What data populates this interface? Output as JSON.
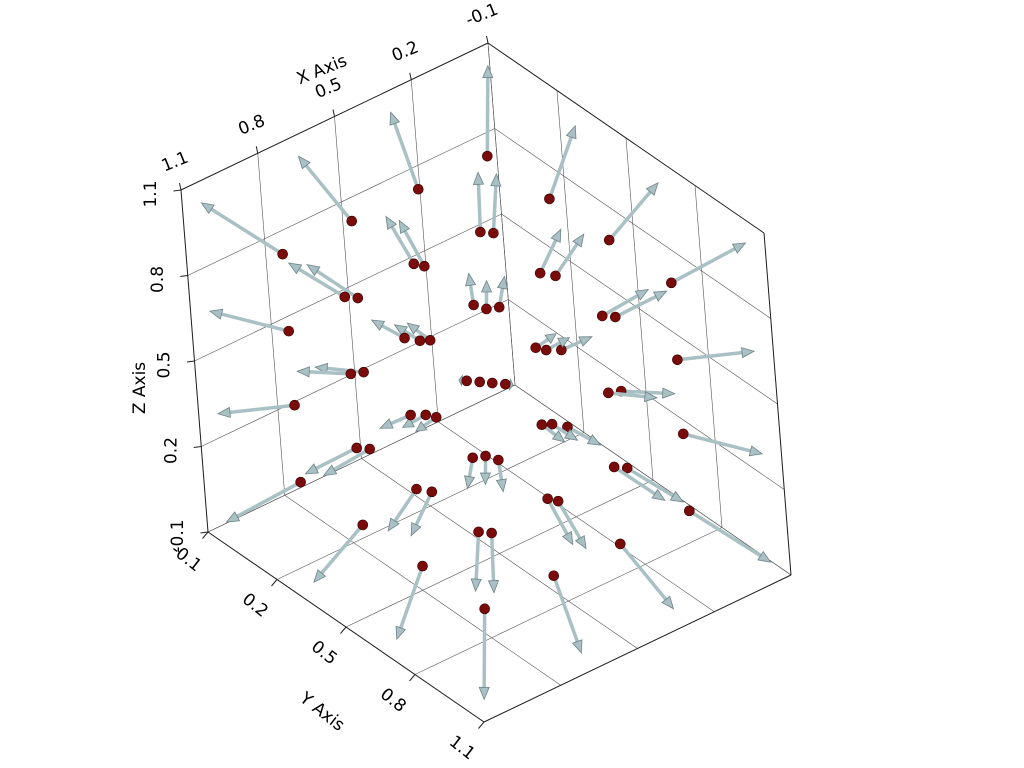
{
  "chart_data": {
    "type": "quiver3d",
    "xlabel": "X Axis",
    "ylabel": "Y Axis",
    "zlabel": "Z Axis",
    "xlim": [
      -0.1,
      1.1
    ],
    "ylim": [
      -0.1,
      1.1
    ],
    "zlim": [
      -0.1,
      1.1
    ],
    "xticks": [
      -0.1,
      0.2,
      0.5,
      0.8,
      1.1
    ],
    "yticks": [
      -0.1,
      0.2,
      0.5,
      0.8,
      1.1
    ],
    "zticks": [
      -0.1,
      0.2,
      0.5,
      0.8,
      1.1
    ],
    "grid": true,
    "point_color": "#7a0b0b",
    "arrow_color": "#a9c0c4",
    "x": [
      0.1,
      0.1,
      0.1,
      0.1,
      0.1,
      0.1,
      0.1,
      0.1,
      0.1,
      0.1,
      0.1,
      0.1,
      0.1,
      0.1,
      0.1,
      0.1,
      0.37,
      0.37,
      0.37,
      0.37,
      0.37,
      0.37,
      0.37,
      0.37,
      0.37,
      0.37,
      0.37,
      0.37,
      0.37,
      0.37,
      0.37,
      0.37,
      0.63,
      0.63,
      0.63,
      0.63,
      0.63,
      0.63,
      0.63,
      0.63,
      0.63,
      0.63,
      0.63,
      0.63,
      0.63,
      0.63,
      0.63,
      0.63,
      0.9,
      0.9,
      0.9,
      0.9,
      0.9,
      0.9,
      0.9,
      0.9,
      0.9,
      0.9,
      0.9,
      0.9,
      0.9,
      0.9,
      0.9,
      0.9
    ],
    "y": [
      0.1,
      0.1,
      0.1,
      0.1,
      0.37,
      0.37,
      0.37,
      0.37,
      0.63,
      0.63,
      0.63,
      0.63,
      0.9,
      0.9,
      0.9,
      0.9,
      0.1,
      0.1,
      0.1,
      0.1,
      0.37,
      0.37,
      0.37,
      0.37,
      0.63,
      0.63,
      0.63,
      0.63,
      0.9,
      0.9,
      0.9,
      0.9,
      0.1,
      0.1,
      0.1,
      0.1,
      0.37,
      0.37,
      0.37,
      0.37,
      0.63,
      0.63,
      0.63,
      0.63,
      0.9,
      0.9,
      0.9,
      0.9,
      0.1,
      0.1,
      0.1,
      0.1,
      0.37,
      0.37,
      0.37,
      0.37,
      0.63,
      0.63,
      0.63,
      0.63,
      0.9,
      0.9,
      0.9,
      0.9
    ],
    "z": [
      0.1,
      0.37,
      0.63,
      0.9,
      0.1,
      0.37,
      0.63,
      0.9,
      0.1,
      0.37,
      0.63,
      0.9,
      0.1,
      0.37,
      0.63,
      0.9,
      0.1,
      0.37,
      0.63,
      0.9,
      0.1,
      0.37,
      0.63,
      0.9,
      0.1,
      0.37,
      0.63,
      0.9,
      0.1,
      0.37,
      0.63,
      0.9,
      0.1,
      0.37,
      0.63,
      0.9,
      0.1,
      0.37,
      0.63,
      0.9,
      0.1,
      0.37,
      0.63,
      0.9,
      0.1,
      0.37,
      0.63,
      0.9,
      0.1,
      0.37,
      0.63,
      0.9,
      0.1,
      0.37,
      0.63,
      0.9,
      0.1,
      0.37,
      0.63,
      0.9,
      0.1,
      0.37,
      0.63,
      0.9
    ],
    "u": [
      -0.16,
      -0.16,
      -0.16,
      -0.16,
      -0.16,
      -0.16,
      -0.16,
      -0.16,
      -0.16,
      -0.16,
      -0.16,
      -0.16,
      -0.16,
      -0.16,
      -0.16,
      -0.16,
      -0.05,
      -0.05,
      -0.05,
      -0.05,
      -0.05,
      -0.05,
      -0.05,
      -0.05,
      -0.05,
      -0.05,
      -0.05,
      -0.05,
      -0.05,
      -0.05,
      -0.05,
      -0.05,
      0.05,
      0.05,
      0.05,
      0.05,
      0.05,
      0.05,
      0.05,
      0.05,
      0.05,
      0.05,
      0.05,
      0.05,
      0.05,
      0.05,
      0.05,
      0.05,
      0.16,
      0.16,
      0.16,
      0.16,
      0.16,
      0.16,
      0.16,
      0.16,
      0.16,
      0.16,
      0.16,
      0.16,
      0.16,
      0.16,
      0.16,
      0.16
    ],
    "v": [
      -0.16,
      -0.16,
      -0.16,
      -0.16,
      -0.05,
      -0.05,
      -0.05,
      -0.05,
      0.05,
      0.05,
      0.05,
      0.05,
      0.16,
      0.16,
      0.16,
      0.16,
      -0.16,
      -0.16,
      -0.16,
      -0.16,
      -0.05,
      -0.05,
      -0.05,
      -0.05,
      0.05,
      0.05,
      0.05,
      0.05,
      0.16,
      0.16,
      0.16,
      0.16,
      -0.16,
      -0.16,
      -0.16,
      -0.16,
      -0.05,
      -0.05,
      -0.05,
      -0.05,
      0.05,
      0.05,
      0.05,
      0.05,
      0.16,
      0.16,
      0.16,
      0.16,
      -0.16,
      -0.16,
      -0.16,
      -0.16,
      -0.05,
      -0.05,
      -0.05,
      -0.05,
      0.05,
      0.05,
      0.05,
      0.05,
      0.16,
      0.16,
      0.16,
      0.16
    ],
    "w": [
      -0.16,
      -0.05,
      0.05,
      0.16,
      -0.16,
      -0.05,
      0.05,
      0.16,
      -0.16,
      -0.05,
      0.05,
      0.16,
      -0.16,
      -0.05,
      0.05,
      0.16,
      -0.16,
      -0.05,
      0.05,
      0.16,
      -0.16,
      -0.05,
      0.05,
      0.16,
      -0.16,
      -0.05,
      0.05,
      0.16,
      -0.16,
      -0.05,
      0.05,
      0.16,
      -0.16,
      -0.05,
      0.05,
      0.16,
      -0.16,
      -0.05,
      0.05,
      0.16,
      -0.16,
      -0.05,
      0.05,
      0.16,
      -0.16,
      -0.05,
      0.05,
      0.16,
      -0.16,
      -0.05,
      0.05,
      0.16,
      -0.16,
      -0.05,
      0.05,
      0.16,
      -0.16,
      -0.05,
      0.05,
      0.16,
      -0.16,
      -0.05,
      0.05,
      0.16
    ]
  }
}
